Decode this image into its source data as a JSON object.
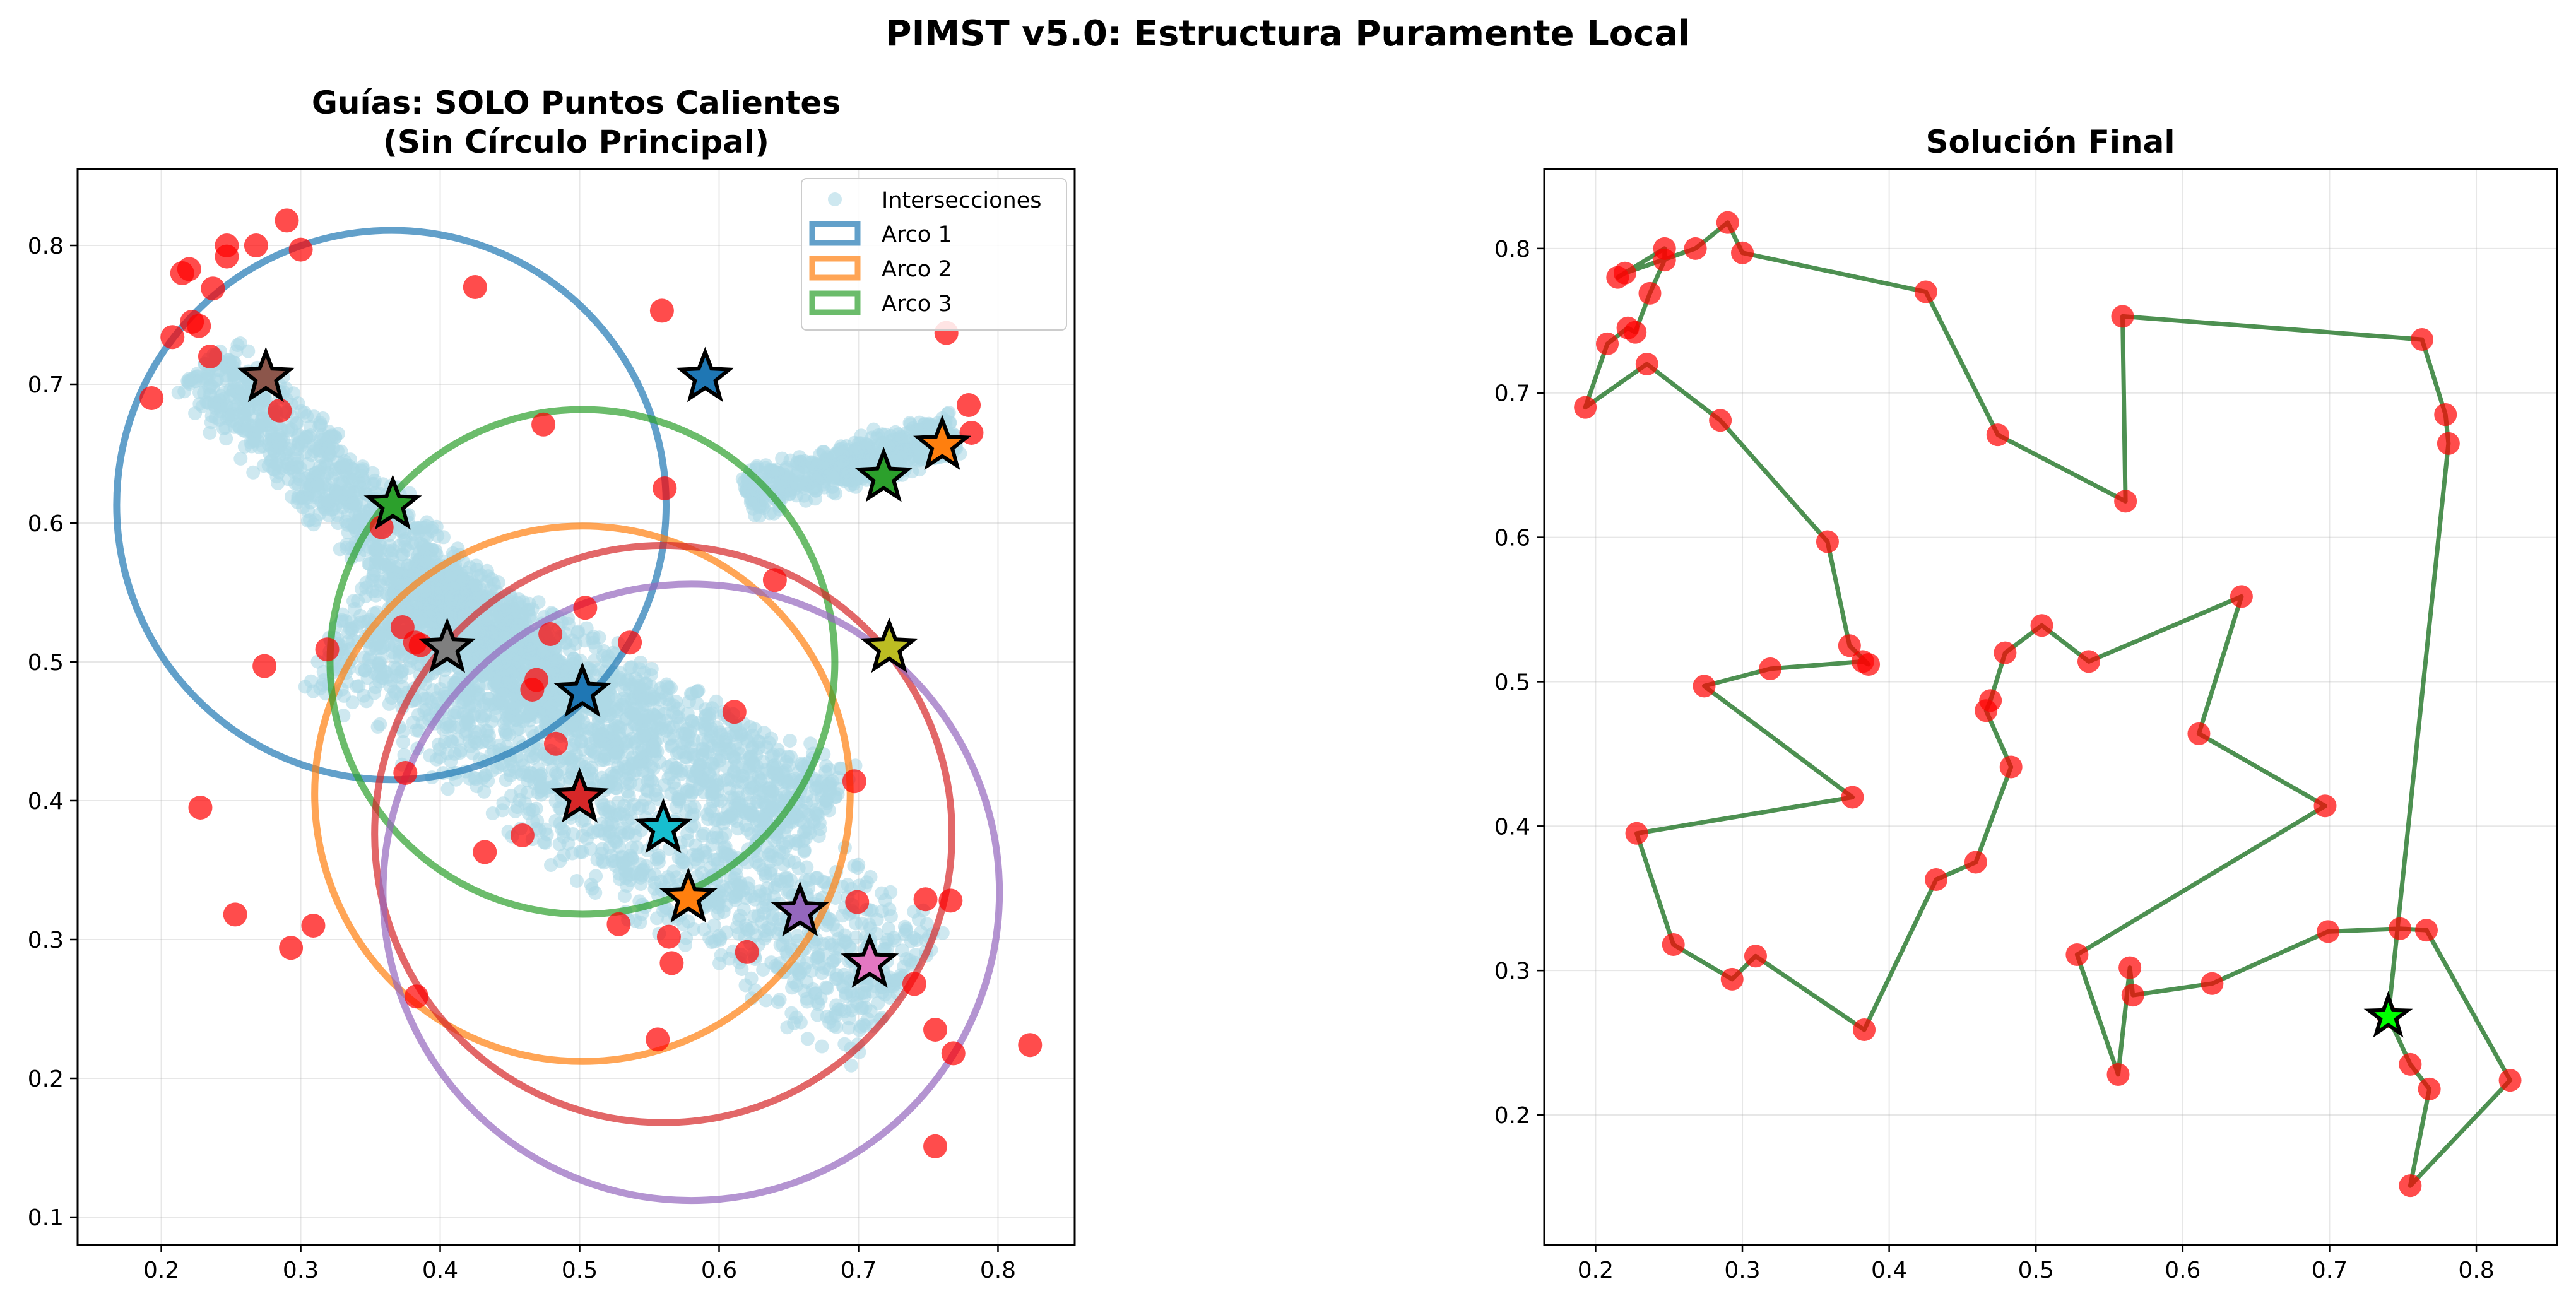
{
  "figure": {
    "suptitle": "PIMST v5.0: Estructura Puramente Local"
  },
  "chart_data": [
    {
      "type": "scatter",
      "title_line1": "Guías: SOLO Puntos Calientes",
      "title_line2": "(Sin Círculo Principal)",
      "xlim": [
        0.14,
        0.855
      ],
      "ylim": [
        0.08,
        0.855
      ],
      "xticks": [
        0.2,
        0.3,
        0.4,
        0.5,
        0.6,
        0.7,
        0.8
      ],
      "yticks": [
        0.1,
        0.2,
        0.3,
        0.4,
        0.5,
        0.6,
        0.7,
        0.8
      ],
      "grid": true,
      "legend_position": "top-right",
      "legend": [
        {
          "label": "Intersecciones",
          "kind": "point",
          "color": "#add8e6"
        },
        {
          "label": "Arco 1",
          "kind": "line",
          "color": "#1f77b4"
        },
        {
          "label": "Arco 2",
          "kind": "line",
          "color": "#ff7f0e"
        },
        {
          "label": "Arco 3",
          "kind": "line",
          "color": "#2ca02c"
        }
      ],
      "intersection_bands": [
        {
          "x0": 0.23,
          "y0": 0.715,
          "x1": 0.49,
          "y1": 0.47,
          "width": 0.035
        },
        {
          "x0": 0.33,
          "y0": 0.535,
          "x1": 0.73,
          "y1": 0.26,
          "width": 0.07
        },
        {
          "x0": 0.37,
          "y0": 0.55,
          "x1": 0.68,
          "y1": 0.39,
          "width": 0.045
        },
        {
          "x0": 0.62,
          "y0": 0.62,
          "x1": 0.77,
          "y1": 0.665,
          "width": 0.02
        }
      ],
      "circles": [
        {
          "name": "Arco 1",
          "cx": 0.365,
          "cy": 0.613,
          "r": 0.197,
          "color": "#1f77b4"
        },
        {
          "name": "Arco 2",
          "cx": 0.502,
          "cy": 0.405,
          "r": 0.192,
          "color": "#ff7f0e"
        },
        {
          "name": "Arco 3",
          "cx": 0.502,
          "cy": 0.5,
          "r": 0.181,
          "color": "#2ca02c"
        },
        {
          "name": "",
          "cx": 0.56,
          "cy": 0.376,
          "r": 0.207,
          "color": "#d62728"
        },
        {
          "name": "",
          "cx": 0.58,
          "cy": 0.334,
          "r": 0.221,
          "color": "#9467bd"
        }
      ],
      "stars": [
        {
          "x": 0.275,
          "y": 0.705,
          "color": "#8c564b"
        },
        {
          "x": 0.59,
          "y": 0.705,
          "color": "#1f77b4"
        },
        {
          "x": 0.366,
          "y": 0.613,
          "color": "#2ca02c"
        },
        {
          "x": 0.718,
          "y": 0.633,
          "color": "#2ca02c"
        },
        {
          "x": 0.76,
          "y": 0.656,
          "color": "#ff7f0e"
        },
        {
          "x": 0.405,
          "y": 0.51,
          "color": "#7f7f7f"
        },
        {
          "x": 0.502,
          "y": 0.478,
          "color": "#1f77b4"
        },
        {
          "x": 0.722,
          "y": 0.51,
          "color": "#bcbd22"
        },
        {
          "x": 0.5,
          "y": 0.402,
          "color": "#d62728"
        },
        {
          "x": 0.56,
          "y": 0.38,
          "color": "#17becf"
        },
        {
          "x": 0.578,
          "y": 0.33,
          "color": "#ff7f0e"
        },
        {
          "x": 0.658,
          "y": 0.32,
          "color": "#9467bd"
        },
        {
          "x": 0.708,
          "y": 0.283,
          "color": "#e377c2"
        }
      ]
    },
    {
      "type": "line",
      "title": "Solución Final",
      "xlim": [
        0.165,
        0.855
      ],
      "ylim": [
        0.11,
        0.855
      ],
      "xticks": [
        0.2,
        0.3,
        0.4,
        0.5,
        0.6,
        0.7,
        0.8
      ],
      "yticks": [
        0.2,
        0.3,
        0.4,
        0.5,
        0.6,
        0.7,
        0.8
      ],
      "grid": true,
      "line_color": "#2e7d32",
      "start_star": {
        "x": 0.74,
        "y": 0.268,
        "color": "#00ff00"
      },
      "tour": [
        [
          0.74,
          0.268
        ],
        [
          0.755,
          0.235
        ],
        [
          0.768,
          0.218
        ],
        [
          0.755,
          0.151
        ],
        [
          0.823,
          0.224
        ],
        [
          0.766,
          0.328
        ],
        [
          0.748,
          0.329
        ],
        [
          0.699,
          0.327
        ],
        [
          0.62,
          0.291
        ],
        [
          0.566,
          0.283
        ],
        [
          0.564,
          0.302
        ],
        [
          0.556,
          0.228
        ],
        [
          0.528,
          0.311
        ],
        [
          0.697,
          0.414
        ],
        [
          0.611,
          0.464
        ],
        [
          0.64,
          0.559
        ],
        [
          0.536,
          0.514
        ],
        [
          0.504,
          0.539
        ],
        [
          0.479,
          0.52
        ],
        [
          0.469,
          0.487
        ],
        [
          0.466,
          0.48
        ],
        [
          0.483,
          0.441
        ],
        [
          0.459,
          0.375
        ],
        [
          0.432,
          0.363
        ],
        [
          0.383,
          0.259
        ],
        [
          0.309,
          0.31
        ],
        [
          0.293,
          0.294
        ],
        [
          0.253,
          0.318
        ],
        [
          0.228,
          0.395
        ],
        [
          0.375,
          0.42
        ],
        [
          0.274,
          0.497
        ],
        [
          0.319,
          0.509
        ],
        [
          0.382,
          0.514
        ],
        [
          0.386,
          0.512
        ],
        [
          0.373,
          0.525
        ],
        [
          0.358,
          0.597
        ],
        [
          0.285,
          0.681
        ],
        [
          0.235,
          0.72
        ],
        [
          0.193,
          0.69
        ],
        [
          0.208,
          0.734
        ],
        [
          0.222,
          0.745
        ],
        [
          0.227,
          0.742
        ],
        [
          0.237,
          0.769
        ],
        [
          0.247,
          0.792
        ],
        [
          0.247,
          0.8
        ],
        [
          0.215,
          0.78
        ],
        [
          0.22,
          0.783
        ],
        [
          0.268,
          0.8
        ],
        [
          0.29,
          0.818
        ],
        [
          0.3,
          0.797
        ],
        [
          0.425,
          0.77
        ],
        [
          0.474,
          0.671
        ],
        [
          0.561,
          0.625
        ],
        [
          0.559,
          0.753
        ],
        [
          0.763,
          0.737
        ],
        [
          0.779,
          0.685
        ],
        [
          0.781,
          0.665
        ],
        [
          0.74,
          0.268
        ]
      ]
    }
  ]
}
